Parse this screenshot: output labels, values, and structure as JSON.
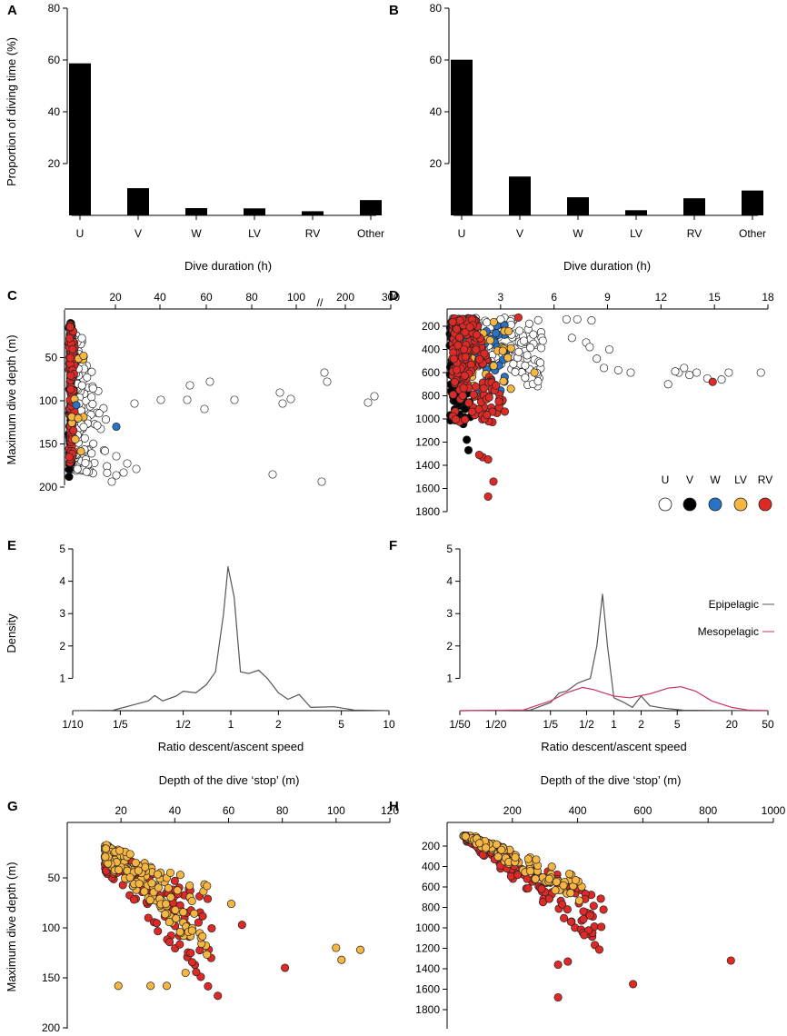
{
  "colors": {
    "U": "#ffffff",
    "V": "#000000",
    "W": "#2a72c4",
    "LV": "#f5b642",
    "RV": "#dd2a26",
    "epi": "#555555",
    "meso": "#cc3366",
    "bar": "#000000"
  },
  "chart_data": [
    {
      "panel": "A",
      "type": "bar",
      "categories": [
        "U",
        "V",
        "W",
        "LV",
        "RV",
        "Other"
      ],
      "values": [
        58.7,
        10.5,
        2.8,
        2.7,
        1.6,
        5.9
      ],
      "ylabel": "Proportion of diving time (%)",
      "ylim": [
        0,
        80
      ],
      "yticks": [
        20,
        40,
        60,
        80
      ]
    },
    {
      "panel": "B",
      "type": "bar",
      "categories": [
        "U",
        "V",
        "W",
        "LV",
        "RV",
        "Other"
      ],
      "values": [
        60.1,
        15.0,
        7.0,
        2.0,
        6.6,
        9.6
      ],
      "ylim": [
        0,
        80
      ],
      "yticks": [
        20,
        40,
        60,
        80
      ]
    },
    {
      "panel": "C",
      "type": "scatter",
      "xlabel": "Dive duration (h)",
      "ylabel": "Maximum dive depth (m)",
      "x_tick_labels": [
        "20",
        "40",
        "60",
        "80",
        "100",
        "200",
        "300"
      ],
      "y_tick_labels": [
        "50",
        "100",
        "150",
        "200"
      ],
      "axis_break": "//",
      "ylim": [
        0,
        200
      ]
    },
    {
      "panel": "D",
      "type": "scatter",
      "xlabel": "Dive duration (h)",
      "x_tick_labels": [
        "3",
        "6",
        "9",
        "12",
        "15",
        "18"
      ],
      "y_tick_labels": [
        "200",
        "400",
        "600",
        "800",
        "1000",
        "1200",
        "1400",
        "1600",
        "1800"
      ],
      "xlim": [
        0,
        18
      ],
      "ylim": [
        50,
        1800
      ],
      "legend_labels": [
        "U",
        "V",
        "W",
        "LV",
        "RV"
      ],
      "legend_location": "bottom-right"
    },
    {
      "panel": "E",
      "type": "line",
      "xlabel": "Ratio descent/ascent speed",
      "ylabel": "Density",
      "x_tick_labels": [
        "1/10",
        "1/5",
        "1/2",
        "1",
        "2",
        "5",
        "10"
      ],
      "y_tick_labels": [
        "1",
        "2",
        "3",
        "4",
        "5"
      ],
      "ylim": [
        0,
        5
      ],
      "series": [
        {
          "name": "Epipelagic",
          "points": [
            [
              0.1,
              0
            ],
            [
              0.18,
              0.01
            ],
            [
              0.3,
              0.3
            ],
            [
              0.33,
              0.47
            ],
            [
              0.37,
              0.3
            ],
            [
              0.45,
              0.45
            ],
            [
              0.5,
              0.6
            ],
            [
              0.6,
              0.55
            ],
            [
              0.7,
              0.8
            ],
            [
              0.8,
              1.2
            ],
            [
              0.9,
              3.0
            ],
            [
              0.96,
              4.45
            ],
            [
              1.05,
              3.5
            ],
            [
              1.15,
              1.2
            ],
            [
              1.3,
              1.15
            ],
            [
              1.5,
              1.25
            ],
            [
              1.7,
              1.0
            ],
            [
              2.0,
              0.55
            ],
            [
              2.3,
              0.35
            ],
            [
              2.7,
              0.5
            ],
            [
              3.2,
              0.1
            ],
            [
              4.5,
              0.12
            ],
            [
              6,
              0.02
            ],
            [
              10,
              0
            ]
          ]
        }
      ]
    },
    {
      "panel": "F",
      "type": "line",
      "xlabel": "Ratio descent/ascent speed",
      "x_tick_labels": [
        "1/50",
        "1/20",
        "1/5",
        "1/2",
        "1",
        "2",
        "5",
        "20",
        "50"
      ],
      "y_tick_labels": [
        "1",
        "2",
        "3",
        "4",
        "5"
      ],
      "ylim": [
        0,
        5
      ],
      "legend_labels": [
        "Epipelagic",
        "Mesopelagic"
      ],
      "series": [
        {
          "name": "Epipelagic",
          "points": [
            [
              0.02,
              0
            ],
            [
              0.12,
              0.02
            ],
            [
              0.2,
              0.25
            ],
            [
              0.25,
              0.55
            ],
            [
              0.3,
              0.6
            ],
            [
              0.4,
              0.85
            ],
            [
              0.55,
              1.0
            ],
            [
              0.65,
              2.0
            ],
            [
              0.75,
              3.6
            ],
            [
              0.85,
              2.0
            ],
            [
              1.0,
              0.4
            ],
            [
              1.3,
              0.25
            ],
            [
              1.6,
              0.1
            ],
            [
              2.0,
              0.45
            ],
            [
              2.5,
              0.15
            ],
            [
              3.5,
              0.08
            ],
            [
              6,
              0.01
            ],
            [
              50,
              0
            ]
          ]
        },
        {
          "name": "Mesopelagic",
          "points": [
            [
              0.02,
              0
            ],
            [
              0.1,
              0.02
            ],
            [
              0.2,
              0.3
            ],
            [
              0.3,
              0.55
            ],
            [
              0.45,
              0.72
            ],
            [
              0.6,
              0.65
            ],
            [
              1.0,
              0.45
            ],
            [
              1.5,
              0.4
            ],
            [
              2.5,
              0.52
            ],
            [
              4,
              0.7
            ],
            [
              5.5,
              0.74
            ],
            [
              8,
              0.6
            ],
            [
              12,
              0.3
            ],
            [
              20,
              0.1
            ],
            [
              30,
              0.02
            ],
            [
              50,
              0
            ]
          ]
        }
      ]
    },
    {
      "panel": "G",
      "type": "scatter",
      "xlabel": "Depth of the dive ‘stop’ (m)",
      "ylabel": "Maximum dive depth (m)",
      "x_tick_labels": [
        "20",
        "40",
        "60",
        "80",
        "100",
        "120"
      ],
      "y_tick_labels": [
        "50",
        "100",
        "150",
        "200"
      ],
      "xlim": [
        0,
        120
      ],
      "ylim": [
        0,
        200
      ]
    },
    {
      "panel": "H",
      "type": "scatter",
      "xlabel": "Depth of the dive ‘stop’ (m)",
      "x_tick_labels": [
        "200",
        "400",
        "600",
        "800",
        "1000"
      ],
      "y_tick_labels": [
        "200",
        "400",
        "600",
        "800",
        "1000",
        "1200",
        "1400",
        "1600",
        "1800"
      ],
      "xlim": [
        0,
        1000
      ],
      "ylim": [
        50,
        1800
      ]
    }
  ]
}
